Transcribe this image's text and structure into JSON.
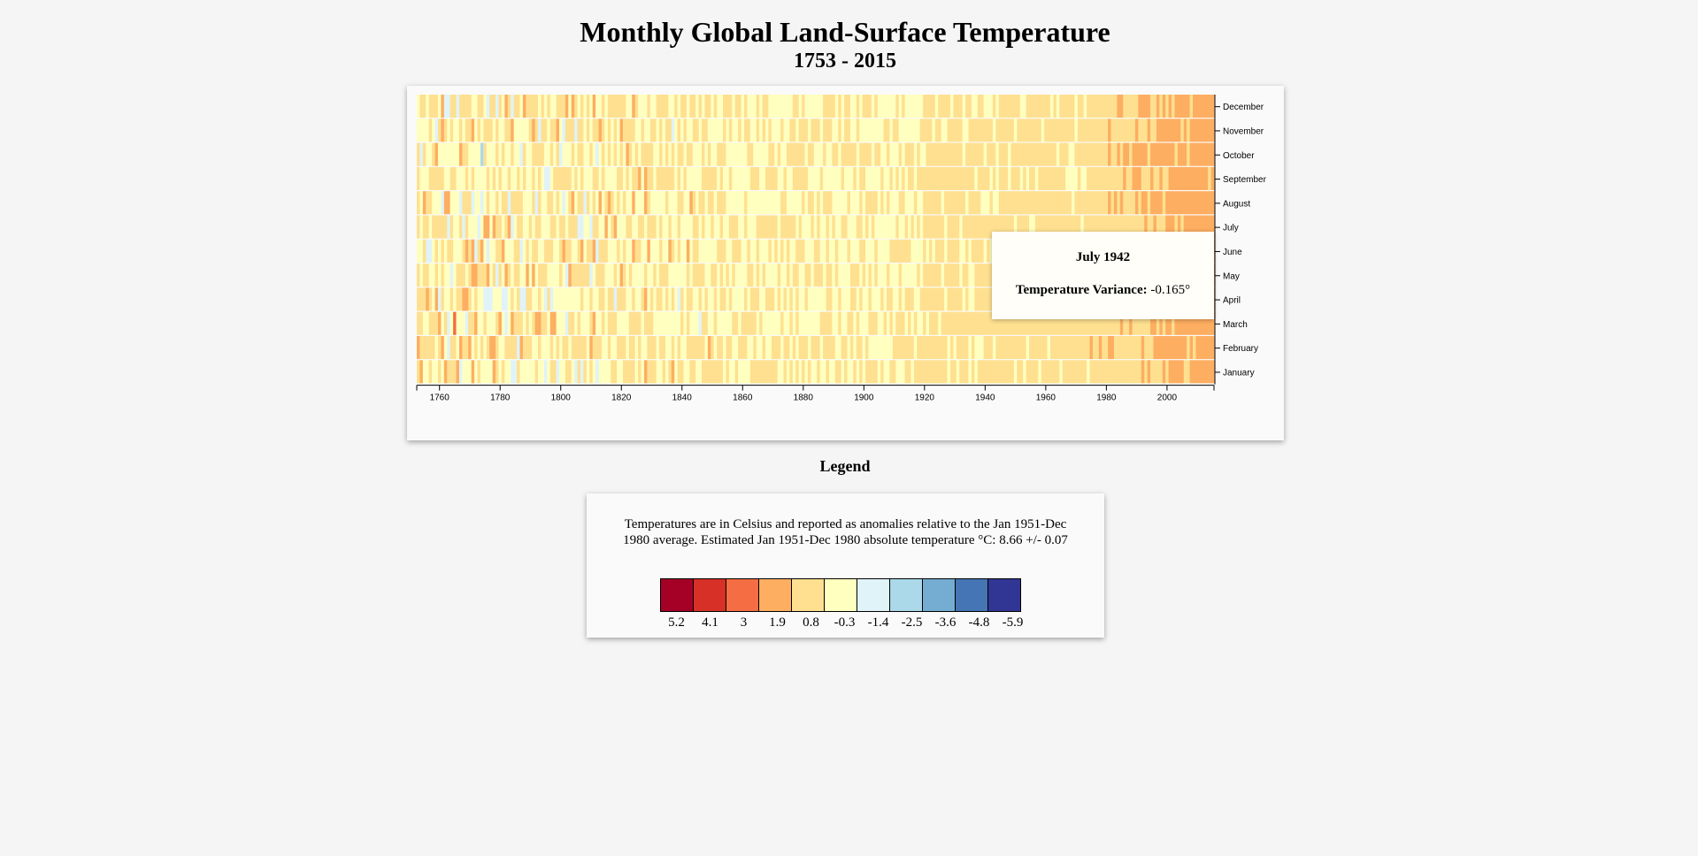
{
  "header": {
    "title": "Monthly Global Land-Surface Temperature",
    "subtitle": "1753 - 2015"
  },
  "chart_data": {
    "type": "heatmap",
    "title": "Monthly Global Land-Surface Temperature",
    "subtitle": "1753 - 2015",
    "xlabel": "",
    "ylabel": "",
    "x_range": [
      1753,
      2015
    ],
    "x_ticks": [
      "1760",
      "1780",
      "1800",
      "1820",
      "1840",
      "1860",
      "1880",
      "1900",
      "1920",
      "1940",
      "1960",
      "1980",
      "2000"
    ],
    "x_tick_values": [
      1760,
      1780,
      1800,
      1820,
      1840,
      1860,
      1880,
      1900,
      1920,
      1940,
      1960,
      1980,
      2000
    ],
    "y_categories": [
      "January",
      "February",
      "March",
      "April",
      "May",
      "June",
      "July",
      "August",
      "September",
      "October",
      "November",
      "December"
    ],
    "y_order": "January at bottom, December at top",
    "value_label": "Temperature Variance",
    "color_scale": {
      "colors": [
        "#a50026",
        "#d73027",
        "#f46d43",
        "#fdae61",
        "#fee090",
        "#ffffbf",
        "#e0f3f8",
        "#abd9e9",
        "#74add1",
        "#4575b4",
        "#313695"
      ],
      "thresholds": [
        5.2,
        4.1,
        3,
        1.9,
        0.8,
        -0.3,
        -1.4,
        -2.5,
        -3.6,
        -4.8,
        -5.9
      ]
    },
    "grid": false,
    "legend_placement": "below chart"
  },
  "tooltip": {
    "date": "July 1942",
    "variance_label": "Temperature Variance:",
    "variance_value": "-0.165°"
  },
  "legend": {
    "heading": "Legend",
    "note": "Temperatures are in Celsius and reported as anomalies relative to the Jan 1951-Dec 1980 average. Estimated Jan 1951-Dec 1980 absolute temperature °C: 8.66 +/- 0.07",
    "labels": [
      "5.2",
      "4.1",
      "3",
      "1.9",
      "0.8",
      "-0.3",
      "-1.4",
      "-2.5",
      "-3.6",
      "-4.8",
      "-5.9"
    ]
  }
}
